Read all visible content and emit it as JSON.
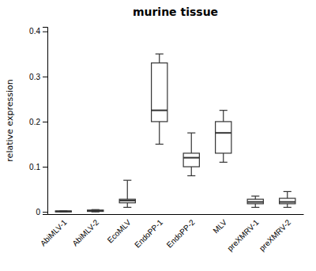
{
  "chart_data": {
    "type": "box",
    "title": "murine tissue",
    "y_label": "relative expression",
    "categories": [
      "AbiMLV-1",
      "AbiMLV-2",
      "EcoMLV",
      "EndoPP-1",
      "EndoPP-2",
      "MLV",
      "preXMRV-1",
      "preXMRV-2"
    ],
    "values": [
      {
        "whislo": 0.0,
        "q1": 0.0,
        "med": 0.001,
        "q3": 0.002,
        "whishi": 0.002
      },
      {
        "whislo": 0.0,
        "q1": 0.001,
        "med": 0.002,
        "q3": 0.004,
        "whishi": 0.005
      },
      {
        "whislo": 0.01,
        "q1": 0.02,
        "med": 0.025,
        "q3": 0.028,
        "whishi": 0.07
      },
      {
        "whislo": 0.15,
        "q1": 0.2,
        "med": 0.225,
        "q3": 0.33,
        "whishi": 0.35
      },
      {
        "whislo": 0.08,
        "q1": 0.1,
        "med": 0.12,
        "q3": 0.13,
        "whishi": 0.175
      },
      {
        "whislo": 0.11,
        "q1": 0.13,
        "med": 0.175,
        "q3": 0.2,
        "whishi": 0.225
      },
      {
        "whislo": 0.01,
        "q1": 0.018,
        "med": 0.022,
        "q3": 0.028,
        "whishi": 0.035
      },
      {
        "whislo": 0.01,
        "q1": 0.018,
        "med": 0.022,
        "q3": 0.03,
        "whishi": 0.045
      }
    ],
    "color": "#333333",
    "ylim": [
      -0.005,
      0.41
    ],
    "yticks": [
      0,
      0.1,
      0.2,
      0.3,
      0.4
    ],
    "grid": false
  }
}
